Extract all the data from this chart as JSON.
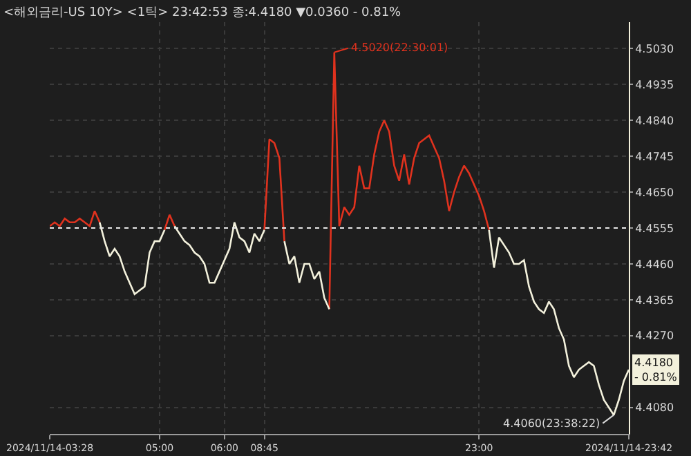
{
  "chart_data": {
    "type": "line",
    "title": "<해외금리-US 10Y> <1틱> 23:42:53 종:4.4180 ▼0.0360 - 0.81%",
    "categories": [
      "2024/11/14-03:28",
      null,
      null,
      null,
      null,
      null,
      null,
      null,
      null,
      null,
      null,
      null,
      null,
      null,
      null,
      null,
      null,
      null,
      null,
      null,
      null,
      null,
      "05:00",
      null,
      null,
      null,
      null,
      null,
      null,
      null,
      null,
      null,
      null,
      null,
      null,
      "06:00",
      null,
      null,
      null,
      null,
      null,
      null,
      null,
      "08:45",
      null,
      null,
      null,
      null,
      null,
      null,
      null,
      null,
      null,
      null,
      null,
      null,
      null,
      null,
      null,
      null,
      null,
      null,
      null,
      null,
      null,
      null,
      null,
      null,
      null,
      null,
      null,
      null,
      null,
      null,
      null,
      null,
      null,
      null,
      null,
      null,
      null,
      null,
      null,
      null,
      null,
      null,
      "23:00",
      null,
      null,
      null,
      null,
      null,
      null,
      null,
      null,
      null,
      null,
      null,
      null,
      null,
      null,
      null,
      null,
      null,
      null,
      null,
      null,
      null,
      null,
      null,
      null,
      null,
      null,
      null,
      null,
      null,
      "2024/11/14-23:42"
    ],
    "ylim": [
      4.401,
      4.51
    ],
    "yticks": [
      {
        "value": 4.408,
        "label": "4.4080"
      },
      {
        "value": 4.427,
        "label": "4.4270"
      },
      {
        "value": 4.4365,
        "label": "4.4365"
      },
      {
        "value": 4.446,
        "label": "4.4460"
      },
      {
        "value": 4.4555,
        "label": "4.4555"
      },
      {
        "value": 4.465,
        "label": "4.4650"
      },
      {
        "value": 4.4745,
        "label": "4.4745"
      },
      {
        "value": 4.484,
        "label": "4.4840"
      },
      {
        "value": 4.4935,
        "label": "4.4935"
      },
      {
        "value": 4.503,
        "label": "4.5030"
      }
    ],
    "grid": true,
    "marker": "none",
    "line_style": "solid",
    "ref_lines": [
      {
        "axis": "y",
        "value": 4.4555,
        "color": "#e8e8e8",
        "line_style": "dotted"
      }
    ],
    "series": [
      {
        "color": "#e0321e",
        "values": [
          4.456,
          4.457,
          4.456,
          4.458,
          4.457,
          4.457,
          4.458,
          4.457,
          4.456,
          4.46,
          4.457,
          null,
          null,
          null,
          null,
          null,
          null,
          null,
          null,
          null,
          null,
          null,
          null,
          4.455,
          4.459,
          4.456,
          null,
          null,
          null,
          null,
          null,
          null,
          null,
          null,
          null,
          null,
          null,
          null,
          null,
          null,
          null,
          null,
          null,
          4.455,
          4.479,
          4.478,
          4.474,
          4.452,
          null,
          null,
          null,
          null,
          null,
          null,
          null,
          null,
          4.434,
          4.502,
          4.456,
          4.461,
          4.459,
          4.461,
          4.472,
          4.466,
          4.466,
          4.475,
          4.481,
          4.484,
          4.481,
          4.472,
          4.468,
          4.475,
          4.467,
          4.474,
          4.478,
          4.479,
          4.48,
          4.477,
          4.474,
          4.468,
          4.46,
          4.465,
          4.469,
          4.472,
          4.47,
          4.467,
          4.464,
          4.46,
          4.455,
          null,
          null,
          null,
          null,
          null,
          null,
          null,
          null,
          null,
          null,
          null,
          null,
          null,
          null,
          null,
          null,
          null,
          null,
          null,
          null,
          null,
          null,
          null,
          null,
          null,
          null,
          null,
          null
        ]
      },
      {
        "color": "#f3f1dc",
        "values": [
          null,
          null,
          null,
          null,
          null,
          null,
          null,
          null,
          null,
          null,
          4.457,
          4.452,
          4.448,
          4.45,
          4.448,
          4.444,
          4.441,
          4.438,
          4.439,
          4.44,
          4.449,
          4.452,
          4.452,
          4.455,
          null,
          4.456,
          4.454,
          4.452,
          4.451,
          4.449,
          4.448,
          4.446,
          4.441,
          4.441,
          4.444,
          4.447,
          4.45,
          4.457,
          4.453,
          4.452,
          4.449,
          4.454,
          4.452,
          4.455,
          null,
          null,
          null,
          4.452,
          4.446,
          4.448,
          4.441,
          4.446,
          4.446,
          4.442,
          4.444,
          4.437,
          4.434,
          null,
          null,
          null,
          null,
          null,
          null,
          null,
          null,
          null,
          null,
          null,
          null,
          null,
          null,
          null,
          null,
          null,
          null,
          null,
          null,
          null,
          null,
          null,
          null,
          null,
          null,
          null,
          null,
          null,
          null,
          null,
          4.455,
          4.445,
          4.453,
          4.451,
          4.449,
          4.446,
          4.446,
          4.447,
          4.44,
          4.436,
          4.434,
          4.433,
          4.436,
          4.434,
          4.429,
          4.426,
          4.419,
          4.416,
          4.418,
          4.419,
          4.42,
          4.419,
          4.414,
          4.41,
          4.408,
          4.406,
          4.41,
          4.415,
          4.418
        ]
      }
    ],
    "annotations": [
      "4.5020(22:30:01)",
      "4.4060(23:38:22)",
      "4.4180\n- 0.81%"
    ]
  }
}
